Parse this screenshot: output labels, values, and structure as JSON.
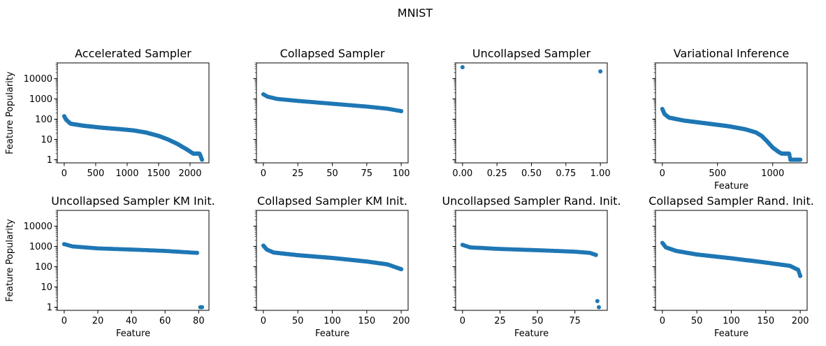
{
  "figure": {
    "suptitle": "MNIST"
  },
  "colors": {
    "marker": "#1f77b4",
    "axes": "#000000",
    "background": "#ffffff"
  },
  "chart_data": [
    {
      "type": "scatter",
      "title": "Accelerated Sampler",
      "xlabel": "",
      "ylabel": "Feature Popularity",
      "y_scale": "log",
      "xlim": [
        -110,
        2300
      ],
      "ylim": [
        0.7,
        60000
      ],
      "xticks": [
        0,
        500,
        1000,
        1500,
        2000
      ],
      "xtick_labels": [
        "0",
        "500",
        "1000",
        "1500",
        "2000"
      ],
      "yticks": [
        1,
        10,
        100,
        1000,
        10000
      ],
      "ytick_labels": [
        "1",
        "10",
        "100",
        "1000",
        "10000"
      ],
      "show_yticklabels": true,
      "n_points": 2200,
      "curve": [
        [
          0,
          140
        ],
        [
          30,
          95
        ],
        [
          100,
          60
        ],
        [
          300,
          48
        ],
        [
          600,
          38
        ],
        [
          900,
          32
        ],
        [
          1100,
          28
        ],
        [
          1300,
          22
        ],
        [
          1500,
          15
        ],
        [
          1650,
          10
        ],
        [
          1800,
          6
        ],
        [
          1950,
          3.2
        ],
        [
          2050,
          2
        ],
        [
          2150,
          2
        ],
        [
          2165,
          1.6
        ],
        [
          2180,
          1.2
        ],
        [
          2190,
          1
        ]
      ]
    },
    {
      "type": "scatter",
      "title": "Collapsed Sampler",
      "xlabel": "",
      "ylabel": "",
      "y_scale": "log",
      "xlim": [
        -5,
        105
      ],
      "ylim": [
        0.7,
        60000
      ],
      "xticks": [
        0,
        25,
        50,
        75,
        100
      ],
      "xtick_labels": [
        "0",
        "25",
        "50",
        "75",
        "100"
      ],
      "yticks": [
        1,
        10,
        100,
        1000,
        10000
      ],
      "ytick_labels": [
        "1",
        "10",
        "100",
        "1000",
        "10000"
      ],
      "show_yticklabels": false,
      "n_points": 100,
      "curve": [
        [
          0,
          1700
        ],
        [
          3,
          1300
        ],
        [
          10,
          1000
        ],
        [
          25,
          800
        ],
        [
          50,
          580
        ],
        [
          75,
          420
        ],
        [
          90,
          330
        ],
        [
          100,
          250
        ]
      ]
    },
    {
      "type": "scatter",
      "title": "Uncollapsed Sampler",
      "xlabel": "",
      "ylabel": "",
      "y_scale": "log",
      "xlim": [
        -0.05,
        1.05
      ],
      "ylim": [
        0.7,
        60000
      ],
      "xticks": [
        0,
        0.25,
        0.5,
        0.75,
        1.0
      ],
      "xtick_labels": [
        "0.00",
        "0.25",
        "0.50",
        "0.75",
        "1.00"
      ],
      "yticks": [
        1,
        10,
        100,
        1000,
        10000
      ],
      "ytick_labels": [
        "1",
        "10",
        "100",
        "1000",
        "10000"
      ],
      "show_yticklabels": false,
      "points": [
        [
          0,
          37000
        ],
        [
          1,
          23000
        ]
      ]
    },
    {
      "type": "scatter",
      "title": "Variational Inference",
      "xlabel": "Feature",
      "ylabel": "",
      "y_scale": "log",
      "xlim": [
        -62,
        1312
      ],
      "ylim": [
        0.7,
        60000
      ],
      "xticks": [
        0,
        500,
        1000
      ],
      "xtick_labels": [
        "0",
        "500",
        "1000"
      ],
      "yticks": [
        1,
        10,
        100,
        1000,
        10000
      ],
      "ytick_labels": [
        "1",
        "10",
        "100",
        "1000",
        "10000"
      ],
      "show_yticklabels": false,
      "n_points": 1250,
      "curve": [
        [
          0,
          320
        ],
        [
          20,
          180
        ],
        [
          60,
          120
        ],
        [
          200,
          85
        ],
        [
          400,
          62
        ],
        [
          600,
          45
        ],
        [
          750,
          32
        ],
        [
          850,
          22
        ],
        [
          900,
          15
        ],
        [
          950,
          8
        ],
        [
          1000,
          4
        ],
        [
          1050,
          2.5
        ],
        [
          1080,
          2
        ],
        [
          1150,
          2
        ],
        [
          1160,
          1
        ],
        [
          1250,
          1
        ]
      ]
    },
    {
      "type": "scatter",
      "title": "Uncollapsed Sampler KM Init.",
      "xlabel": "Feature",
      "ylabel": "Feature Popularity",
      "y_scale": "log",
      "xlim": [
        -4.1,
        86.1
      ],
      "ylim": [
        0.7,
        60000
      ],
      "xticks": [
        0,
        20,
        40,
        60,
        80
      ],
      "xtick_labels": [
        "0",
        "20",
        "40",
        "60",
        "80"
      ],
      "yticks": [
        1,
        10,
        100,
        1000,
        10000
      ],
      "ytick_labels": [
        "1",
        "10",
        "100",
        "1000",
        "10000"
      ],
      "show_yticklabels": true,
      "n_points": 80,
      "curve": [
        [
          0,
          1300
        ],
        [
          5,
          1000
        ],
        [
          20,
          800
        ],
        [
          40,
          700
        ],
        [
          60,
          600
        ],
        [
          79,
          480
        ]
      ],
      "extra_points": [
        [
          81,
          1
        ],
        [
          82,
          1
        ]
      ]
    },
    {
      "type": "scatter",
      "title": "Collapsed Sampler KM Init.",
      "xlabel": "Feature",
      "ylabel": "",
      "y_scale": "log",
      "xlim": [
        -10,
        210
      ],
      "ylim": [
        0.7,
        60000
      ],
      "xticks": [
        0,
        50,
        100,
        150,
        200
      ],
      "xtick_labels": [
        "0",
        "50",
        "100",
        "150",
        "200"
      ],
      "yticks": [
        1,
        10,
        100,
        1000,
        10000
      ],
      "ytick_labels": [
        "1",
        "10",
        "100",
        "1000",
        "10000"
      ],
      "show_yticklabels": false,
      "n_points": 200,
      "curve": [
        [
          0,
          1100
        ],
        [
          5,
          700
        ],
        [
          15,
          500
        ],
        [
          50,
          370
        ],
        [
          100,
          270
        ],
        [
          150,
          180
        ],
        [
          180,
          130
        ],
        [
          200,
          75
        ]
      ]
    },
    {
      "type": "scatter",
      "title": "Uncollapsed Sampler Rand. Init.",
      "xlabel": "Feature",
      "ylabel": "",
      "y_scale": "log",
      "xlim": [
        -4.6,
        96.6
      ],
      "ylim": [
        0.7,
        60000
      ],
      "xticks": [
        0,
        25,
        50,
        75
      ],
      "xtick_labels": [
        "0",
        "25",
        "50",
        "75"
      ],
      "yticks": [
        1,
        10,
        100,
        1000,
        10000
      ],
      "ytick_labels": [
        "1",
        "10",
        "100",
        "1000",
        "10000"
      ],
      "show_yticklabels": false,
      "n_points": 90,
      "curve": [
        [
          0,
          1200
        ],
        [
          5,
          900
        ],
        [
          25,
          750
        ],
        [
          50,
          650
        ],
        [
          75,
          550
        ],
        [
          85,
          480
        ],
        [
          89,
          380
        ]
      ],
      "extra_points": [
        [
          90,
          2
        ],
        [
          91,
          1
        ]
      ]
    },
    {
      "type": "scatter",
      "title": "Collapsed Sampler Rand. Init.",
      "xlabel": "Feature",
      "ylabel": "",
      "y_scale": "log",
      "xlim": [
        -10,
        210
      ],
      "ylim": [
        0.7,
        60000
      ],
      "xticks": [
        0,
        50,
        100,
        150,
        200
      ],
      "xtick_labels": [
        "0",
        "50",
        "100",
        "150",
        "200"
      ],
      "yticks": [
        1,
        10,
        100,
        1000,
        10000
      ],
      "ytick_labels": [
        "1",
        "10",
        "100",
        "1000",
        "10000"
      ],
      "show_yticklabels": false,
      "n_points": 200,
      "curve": [
        [
          0,
          1500
        ],
        [
          5,
          900
        ],
        [
          20,
          600
        ],
        [
          50,
          400
        ],
        [
          100,
          260
        ],
        [
          150,
          160
        ],
        [
          185,
          110
        ],
        [
          197,
          70
        ],
        [
          200,
          35
        ]
      ]
    }
  ]
}
